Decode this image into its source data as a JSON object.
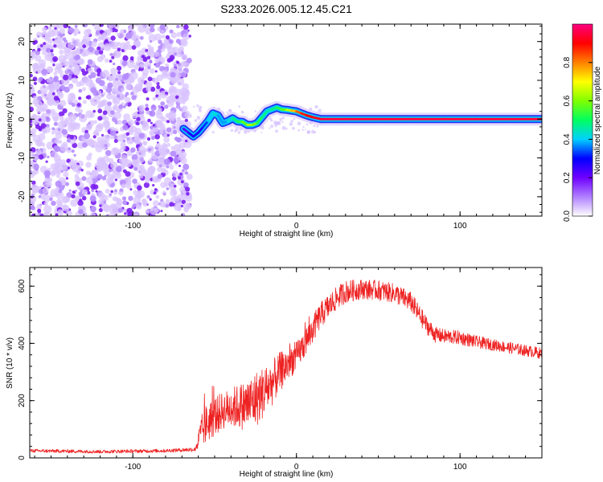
{
  "title": "S233.2026.005.12.45.C21",
  "chart_data": [
    {
      "type": "heatmap",
      "name": "spectrogram",
      "xlabel": "Height of straight line (km)",
      "ylabel": "Frequency (Hz)",
      "xlim": [
        -163,
        150
      ],
      "ylim": [
        -25,
        24.5
      ],
      "xticks": [
        -100,
        0,
        100
      ],
      "yticks": [
        -20,
        -10,
        0,
        10,
        20
      ],
      "noise_region_x": [
        -163,
        -69
      ],
      "ridge": {
        "x": [
          -69,
          -66,
          -63,
          -60,
          -57,
          -54,
          -51,
          -48,
          -45,
          -42,
          -39,
          -36,
          -33,
          -30,
          -27,
          -24,
          -21,
          -18,
          -15,
          -12,
          -9,
          -6,
          -3,
          0,
          3,
          6,
          10,
          15,
          20,
          30,
          50,
          70,
          90,
          110,
          130,
          150
        ],
        "y": [
          -2.5,
          -3.5,
          -4.5,
          -3.5,
          -2.0,
          -0.5,
          1.5,
          1.0,
          -1.0,
          -0.5,
          0.2,
          -0.6,
          -0.7,
          -1.5,
          -1.5,
          -1.0,
          0.5,
          2.0,
          2.5,
          3.0,
          2.5,
          2.4,
          2.2,
          2.0,
          1.5,
          1.0,
          0.5,
          0.0,
          0.0,
          0.0,
          0.0,
          0.0,
          0.0,
          0.0,
          0.0,
          0.0
        ],
        "amplitude": [
          0.2,
          0.25,
          0.3,
          0.25,
          0.3,
          0.35,
          0.45,
          0.4,
          0.35,
          0.4,
          0.45,
          0.5,
          0.55,
          0.6,
          0.65,
          0.55,
          0.5,
          0.45,
          0.45,
          0.5,
          0.55,
          0.6,
          0.7,
          0.8,
          0.85,
          0.9,
          0.9,
          0.95,
          0.95,
          0.95,
          0.95,
          0.95,
          0.95,
          0.95,
          0.95,
          0.95
        ]
      }
    },
    {
      "type": "colorbar",
      "name": "colorbar",
      "label": "Normalized spectral amplitude",
      "range": [
        0,
        1
      ],
      "ticks": [
        "0.0",
        "0.2",
        "0.4",
        "0.6",
        "0.8"
      ],
      "stops": [
        "#ffffff",
        "#b080ff",
        "#7000ff",
        "#0000ff",
        "#00d0ff",
        "#00ff60",
        "#80ff00",
        "#ffff00",
        "#ff8000",
        "#ff0000",
        "#ff0080"
      ]
    },
    {
      "type": "line",
      "name": "snr",
      "xlabel": "Height of straight line (km)",
      "ylabel": "SNR (10 * v/v)",
      "xlim": [
        -163,
        150
      ],
      "ylim": [
        0,
        665
      ],
      "xticks": [
        -100,
        0,
        100
      ],
      "yticks": [
        0,
        200,
        400,
        600
      ],
      "color": "#ee2222",
      "envelope": {
        "x": [
          -163,
          -120,
          -80,
          -62,
          -58,
          -55,
          -50,
          -45,
          -40,
          -35,
          -30,
          -25,
          -20,
          -15,
          -10,
          -5,
          0,
          5,
          10,
          15,
          20,
          25,
          30,
          40,
          50,
          60,
          70,
          75,
          80,
          85,
          90,
          100,
          110,
          120,
          130,
          140,
          150
        ],
        "y": [
          25,
          22,
          25,
          30,
          90,
          120,
          145,
          165,
          175,
          180,
          185,
          205,
          230,
          260,
          300,
          330,
          355,
          400,
          450,
          500,
          530,
          560,
          580,
          590,
          585,
          575,
          545,
          500,
          460,
          430,
          425,
          420,
          405,
          395,
          385,
          375,
          365
        ],
        "noise": [
          6,
          6,
          6,
          8,
          60,
          70,
          70,
          65,
          70,
          80,
          90,
          100,
          90,
          80,
          70,
          60,
          50,
          50,
          50,
          45,
          45,
          40,
          40,
          35,
          35,
          35,
          35,
          35,
          30,
          28,
          25,
          25,
          22,
          20,
          20,
          20,
          20
        ]
      }
    }
  ]
}
